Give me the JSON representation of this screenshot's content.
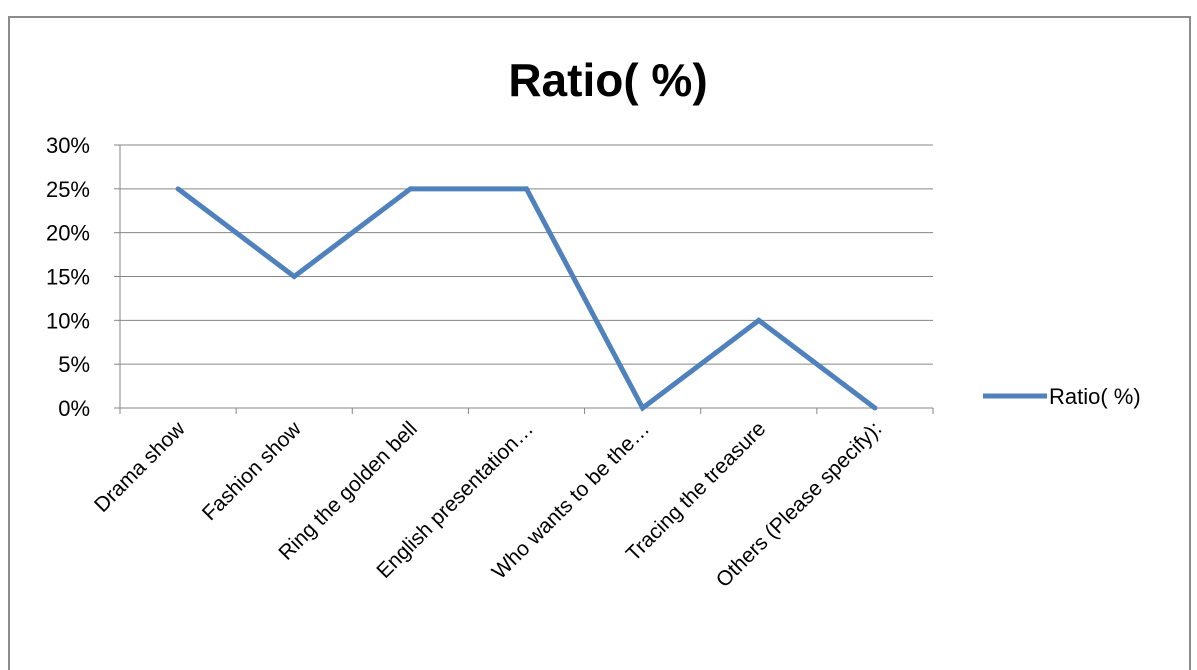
{
  "chart_data": {
    "type": "line",
    "title": "Ratio( %)",
    "xlabel": "",
    "ylabel": "",
    "categories": [
      "Drama show",
      "Fashion show",
      "Ring the golden bell",
      "English presentation…",
      "Who wants to be the…",
      "Tracing the treasure",
      "Others (Please specify):"
    ],
    "series": [
      {
        "name": "Ratio( %)",
        "color": "#4f81bd",
        "values": [
          25,
          15,
          25,
          25,
          0,
          10,
          0
        ]
      }
    ],
    "ylim": [
      0,
      30
    ],
    "yticks": [
      "0%",
      "5%",
      "10%",
      "15%",
      "20%",
      "25%",
      "30%"
    ],
    "grid": true,
    "legend": "right"
  }
}
